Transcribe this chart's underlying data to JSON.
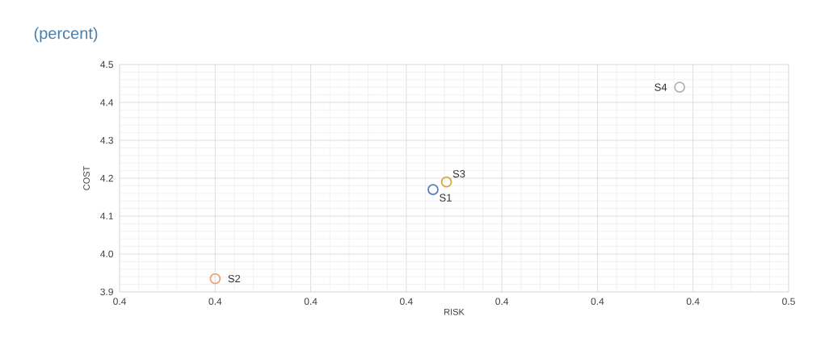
{
  "chart_data": {
    "type": "scatter",
    "subtitle": "(percent)",
    "xlabel": "RISK",
    "ylabel": "COST",
    "series": [
      {
        "name": "S1",
        "color": "#5a7dbf",
        "x": [
          0.4314
        ],
        "values": [
          4.17
        ]
      },
      {
        "name": "S2",
        "color": "#e8a57a",
        "x": [
          0.42
        ],
        "values": [
          3.935
        ]
      },
      {
        "name": "S3",
        "color": "#d1ac3a",
        "x": [
          0.4321
        ],
        "values": [
          4.19
        ]
      },
      {
        "name": "S4",
        "color": "#b3b3b3",
        "x": [
          0.4443
        ],
        "values": [
          4.44
        ]
      }
    ],
    "xlim": [
      0.415,
      0.45
    ],
    "ylim": [
      3.9,
      4.5
    ],
    "xticks": [
      {
        "value": 0.415,
        "label": "0.4"
      },
      {
        "value": 0.42,
        "label": "0.4"
      },
      {
        "value": 0.425,
        "label": "0.4"
      },
      {
        "value": 0.43,
        "label": "0.4"
      },
      {
        "value": 0.435,
        "label": "0.4"
      },
      {
        "value": 0.44,
        "label": "0.4"
      },
      {
        "value": 0.445,
        "label": "0.4"
      },
      {
        "value": 0.45,
        "label": "0.5"
      }
    ],
    "yticks": [
      3.9,
      {
        "value": 4.0,
        "label": "4.0"
      },
      4.1,
      4.2,
      4.3,
      4.4,
      4.5
    ],
    "grid": true,
    "marker": "circle"
  }
}
